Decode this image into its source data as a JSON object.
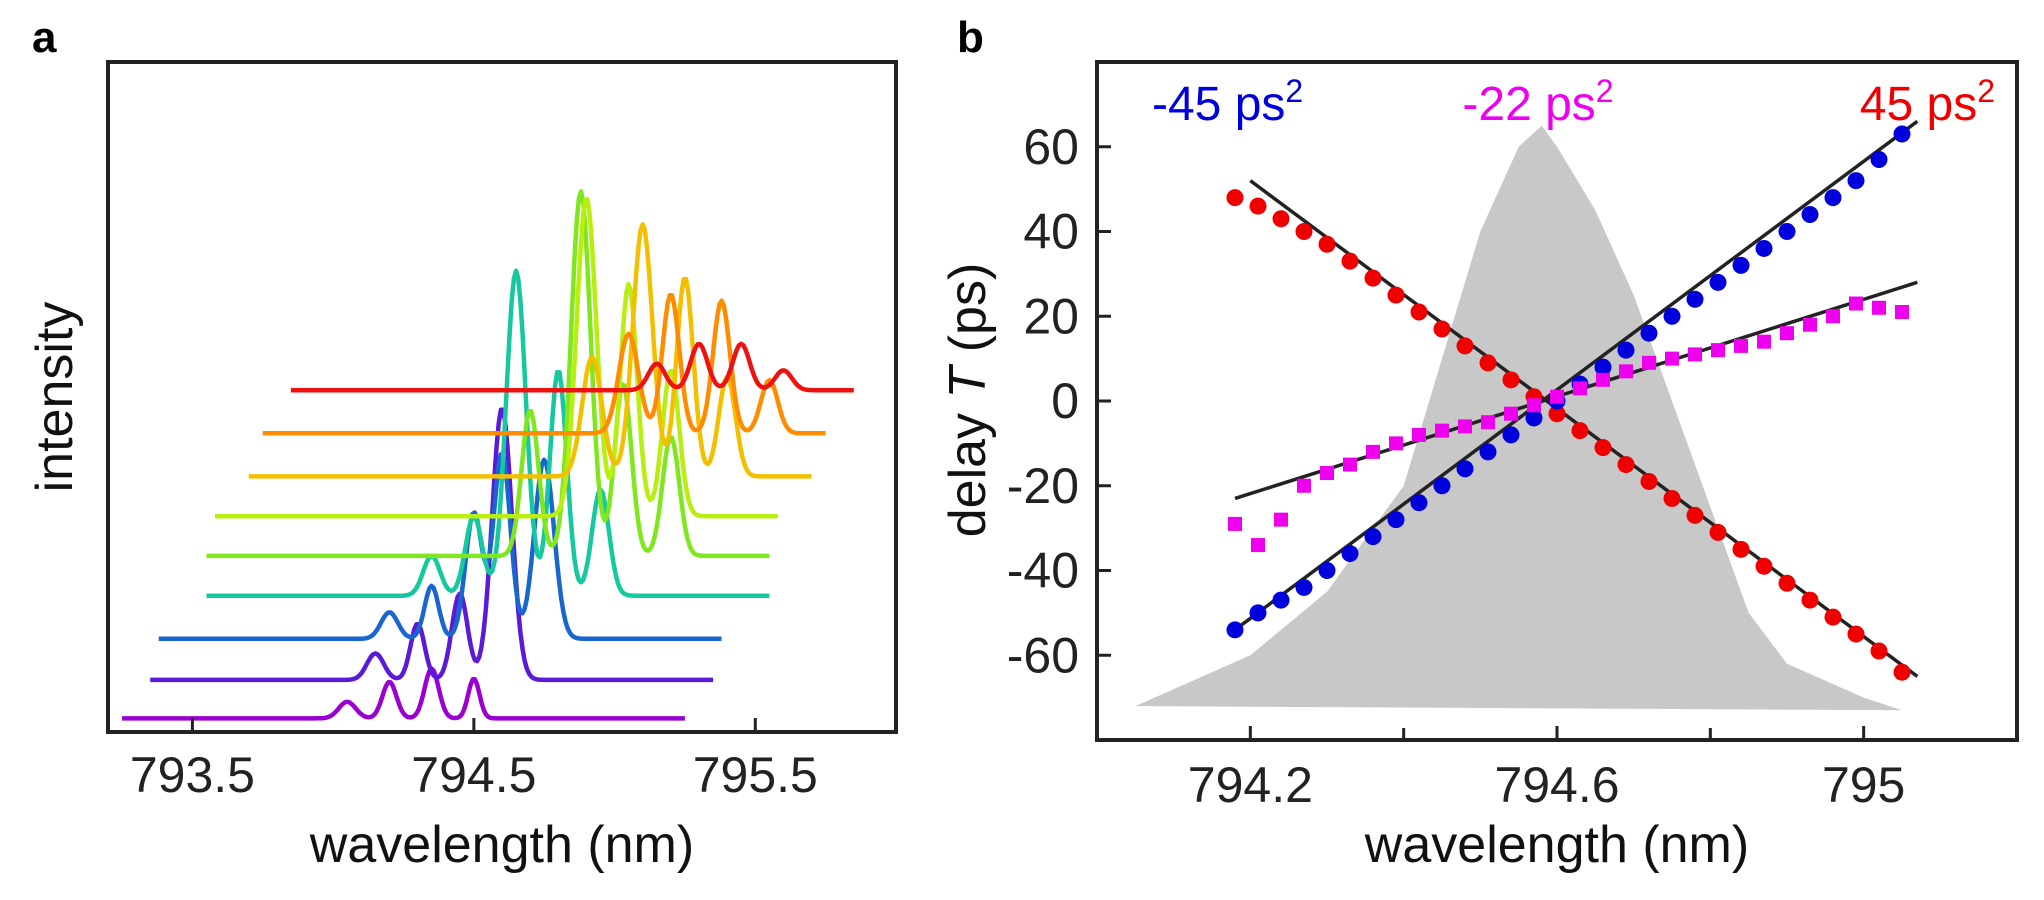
{
  "chart_data": [
    {
      "panel": "a",
      "type": "line",
      "title": "",
      "xlabel": "wavelength (nm)",
      "ylabel": "intensity",
      "xlim": [
        793.2,
        796.0
      ],
      "xticks": [
        793.5,
        794.5,
        795.5
      ],
      "xtick_labels": [
        "793.5",
        "794.5",
        "795.5"
      ],
      "yticks": [],
      "ylim": [
        0,
        1
      ],
      "grid": false,
      "legend": "none",
      "note": "Waterfall of 9 spectra; each trace is vertically offset and shifted in wavelength. Values are normalized intensity above each trace's own baseline.",
      "series": [
        {
          "name": "trace-1",
          "color": "#9b00d3",
          "x_start": 793.25,
          "x_end": 795.25,
          "baseline": 0.01,
          "peaks": [
            [
              794.05,
              0.025,
              0.03
            ],
            [
              794.2,
              0.055,
              0.025
            ],
            [
              794.35,
              0.075,
              0.025
            ],
            [
              794.5,
              0.06,
              0.02
            ]
          ]
        },
        {
          "name": "trace-2",
          "color": "#5a1ad8",
          "x_start": 793.35,
          "x_end": 795.35,
          "baseline": 0.068,
          "peaks": [
            [
              794.15,
              0.04,
              0.03
            ],
            [
              794.3,
              0.085,
              0.025
            ],
            [
              794.45,
              0.13,
              0.028
            ],
            [
              794.6,
              0.41,
              0.035
            ]
          ]
        },
        {
          "name": "trace-3",
          "color": "#1a66cf",
          "x_start": 793.38,
          "x_end": 795.38,
          "baseline": 0.13,
          "peaks": [
            [
              794.2,
              0.04,
              0.03
            ],
            [
              794.35,
              0.08,
              0.025
            ],
            [
              794.5,
              0.19,
              0.03
            ],
            [
              794.6,
              0.28,
              0.03
            ],
            [
              794.75,
              0.27,
              0.035
            ]
          ]
        },
        {
          "name": "trace-4",
          "color": "#16c8a0",
          "x_start": 793.55,
          "x_end": 795.55,
          "baseline": 0.195,
          "peaks": [
            [
              794.35,
              0.06,
              0.03
            ],
            [
              794.5,
              0.12,
              0.03
            ],
            [
              794.65,
              0.49,
              0.035
            ],
            [
              794.8,
              0.34,
              0.03
            ],
            [
              794.95,
              0.16,
              0.03
            ]
          ]
        },
        {
          "name": "trace-5",
          "color": "#7fe61f",
          "x_start": 793.55,
          "x_end": 795.55,
          "baseline": 0.255,
          "peaks": [
            [
              794.7,
              0.22,
              0.03
            ],
            [
              794.88,
              0.55,
              0.035
            ],
            [
              795.03,
              0.26,
              0.03
            ],
            [
              795.2,
              0.18,
              0.03
            ]
          ]
        },
        {
          "name": "trace-6",
          "color": "#b8ee10",
          "x_start": 793.58,
          "x_end": 795.58,
          "baseline": 0.315,
          "peaks": [
            [
              794.9,
              0.48,
              0.035
            ],
            [
              795.05,
              0.35,
              0.03
            ],
            [
              795.2,
              0.22,
              0.03
            ]
          ]
        },
        {
          "name": "trace-7",
          "color": "#f2c000",
          "x_start": 793.7,
          "x_end": 795.7,
          "baseline": 0.375,
          "peaks": [
            [
              794.92,
              0.18,
              0.035
            ],
            [
              795.1,
              0.38,
              0.035
            ],
            [
              795.25,
              0.3,
              0.03
            ],
            [
              795.4,
              0.15,
              0.03
            ]
          ]
        },
        {
          "name": "trace-8",
          "color": "#ff8c00",
          "x_start": 793.75,
          "x_end": 795.75,
          "baseline": 0.44,
          "peaks": [
            [
              795.05,
              0.15,
              0.035
            ],
            [
              795.2,
              0.21,
              0.03
            ],
            [
              795.38,
              0.2,
              0.03
            ],
            [
              795.55,
              0.08,
              0.03
            ]
          ]
        },
        {
          "name": "trace-9",
          "color": "#ee1111",
          "x_start": 793.85,
          "x_end": 795.85,
          "baseline": 0.505,
          "peaks": [
            [
              795.15,
              0.04,
              0.03
            ],
            [
              795.3,
              0.07,
              0.03
            ],
            [
              795.45,
              0.07,
              0.03
            ],
            [
              795.6,
              0.03,
              0.03
            ]
          ]
        }
      ]
    },
    {
      "panel": "b",
      "type": "scatter",
      "title": "",
      "xlabel_prefix": "wavelength (nm)",
      "ylabel_prefix": "delay ",
      "ylabel_italic": "T",
      "ylabel_suffix": " (ps)",
      "xlim": [
        794.0,
        795.2
      ],
      "ylim": [
        -80,
        80
      ],
      "xticks": [
        794.2,
        794.6,
        795.0
      ],
      "xtick_labels": [
        "794.2",
        "794.6",
        "795"
      ],
      "xminor_ticks": [
        794.4,
        794.8
      ],
      "yticks": [
        60,
        40,
        20,
        0,
        -20,
        -40,
        -60
      ],
      "ytick_labels": [
        "60",
        "40",
        "20",
        "0",
        "-20",
        "-40",
        "-60"
      ],
      "grid": false,
      "legend": "none",
      "background_spectrum": {
        "color": "#c8c8c8",
        "x": [
          794.05,
          794.2,
          794.3,
          794.4,
          794.45,
          794.5,
          794.55,
          794.58,
          794.6,
          794.65,
          794.7,
          794.75,
          794.8,
          794.85,
          794.9,
          795.0,
          795.05
        ],
        "y": [
          -72,
          -60,
          -45,
          -20,
          10,
          40,
          60,
          65,
          60,
          45,
          25,
          0,
          -25,
          -50,
          -62,
          -70,
          -73
        ]
      },
      "annotations": [
        {
          "text": "-45 ps",
          "sup": "2",
          "color": "#0000dd",
          "position": "top-left"
        },
        {
          "text": "-22 ps",
          "sup": "2",
          "color": "#ee00ee",
          "position": "top-center"
        },
        {
          "text": "45 ps",
          "sup": "2",
          "color": "#ee0000",
          "position": "top-right"
        }
      ],
      "fit_lines": [
        {
          "name": "fit-45",
          "color": "#222222",
          "x": [
            794.2,
            795.07
          ],
          "y": [
            52,
            -65
          ]
        },
        {
          "name": "fit-minus-45",
          "color": "#222222",
          "x": [
            794.18,
            795.07
          ],
          "y": [
            -54,
            66
          ]
        },
        {
          "name": "fit-minus-22",
          "color": "#222222",
          "x": [
            794.18,
            795.07
          ],
          "y": [
            -23,
            28
          ]
        }
      ],
      "series": [
        {
          "name": "45 ps2",
          "color": "#ee0000",
          "marker": "circle",
          "x": [
            794.18,
            794.21,
            794.24,
            794.27,
            794.3,
            794.33,
            794.36,
            794.39,
            794.42,
            794.45,
            794.48,
            794.51,
            794.54,
            794.57,
            794.6,
            794.63,
            794.66,
            794.69,
            794.72,
            794.75,
            794.78,
            794.81,
            794.84,
            794.87,
            794.9,
            794.93,
            794.96,
            794.99,
            795.02,
            795.05
          ],
          "y": [
            48,
            46,
            43,
            40,
            37,
            33,
            29,
            25,
            21,
            17,
            13,
            9,
            5,
            1,
            -3,
            -7,
            -11,
            -15,
            -19,
            -23,
            -27,
            -31,
            -35,
            -39,
            -43,
            -47,
            -51,
            -55,
            -59,
            -64
          ]
        },
        {
          "name": "-45 ps2",
          "color": "#0000dd",
          "marker": "circle",
          "x": [
            794.18,
            794.21,
            794.24,
            794.27,
            794.3,
            794.33,
            794.36,
            794.39,
            794.42,
            794.45,
            794.48,
            794.51,
            794.54,
            794.57,
            794.6,
            794.63,
            794.66,
            794.69,
            794.72,
            794.75,
            794.78,
            794.81,
            794.84,
            794.87,
            794.9,
            794.93,
            794.96,
            794.99,
            795.02,
            795.05
          ],
          "y": [
            -54,
            -50,
            -47,
            -44,
            -40,
            -36,
            -32,
            -28,
            -24,
            -20,
            -16,
            -12,
            -8,
            -4,
            0,
            4,
            8,
            12,
            16,
            20,
            24,
            28,
            32,
            36,
            40,
            44,
            48,
            52,
            57,
            63
          ]
        },
        {
          "name": "-22 ps2",
          "color": "#ee00ee",
          "marker": "square",
          "x": [
            794.18,
            794.21,
            794.24,
            794.27,
            794.3,
            794.33,
            794.36,
            794.39,
            794.42,
            794.45,
            794.48,
            794.51,
            794.54,
            794.57,
            794.6,
            794.63,
            794.66,
            794.69,
            794.72,
            794.75,
            794.78,
            794.81,
            794.84,
            794.87,
            794.9,
            794.93,
            794.96,
            794.99,
            795.02,
            795.05
          ],
          "y": [
            -29,
            -34,
            -28,
            -20,
            -17,
            -15,
            -12,
            -10,
            -8,
            -7,
            -6,
            -5,
            -3,
            -1,
            1,
            3,
            5,
            7,
            9,
            10,
            11,
            12,
            13,
            14,
            16,
            18,
            20,
            23,
            22,
            21
          ]
        }
      ]
    }
  ]
}
